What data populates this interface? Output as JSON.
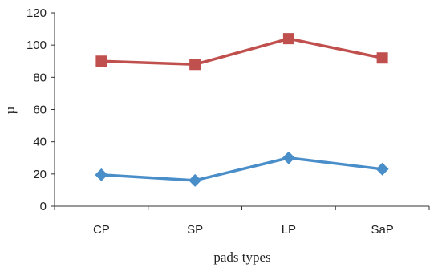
{
  "chart_data": {
    "type": "line",
    "categories": [
      "CP",
      "SP",
      "LP",
      "SaP"
    ],
    "series": [
      {
        "values": [
          90,
          88,
          104,
          92
        ],
        "color": "#c0504d",
        "marker": "square"
      },
      {
        "values": [
          19.5,
          16,
          30,
          23
        ],
        "color": "#4a8ec9",
        "marker": "diamond"
      }
    ],
    "xlabel": "pads types",
    "ylabel": "μ",
    "ylim": [
      0,
      120
    ],
    "yticks": [
      0,
      20,
      40,
      60,
      80,
      100,
      120
    ],
    "grid": false,
    "legend": "none"
  }
}
